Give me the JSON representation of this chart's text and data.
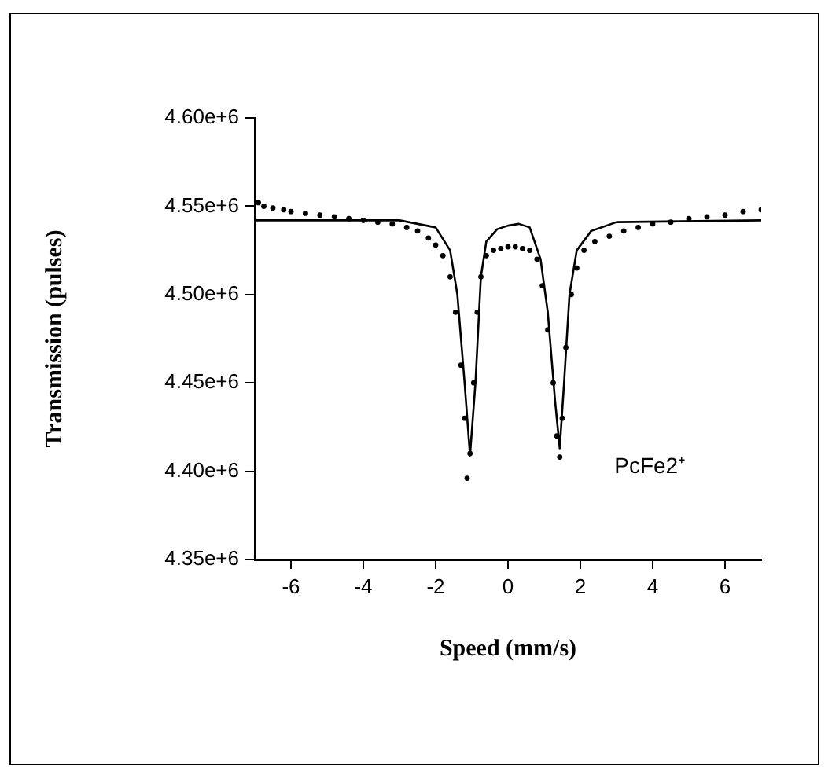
{
  "chart_data": {
    "type": "scatter",
    "xlabel": "Speed (mm/s)",
    "ylabel": "Transmission (pulses)",
    "xlim": [
      -7,
      7
    ],
    "xticks": [
      -6,
      -4,
      -2,
      0,
      2,
      4,
      6
    ],
    "ylim": [
      4350000,
      4600000
    ],
    "yticks": [
      {
        "value": 4350000,
        "label": "4.35e+6"
      },
      {
        "value": 4400000,
        "label": "4.40e+6"
      },
      {
        "value": 4450000,
        "label": "4.45e+6"
      },
      {
        "value": 4500000,
        "label": "4.50e+6"
      },
      {
        "value": 4550000,
        "label": "4.55e+6"
      },
      {
        "value": 4600000,
        "label": "4.60e+6"
      }
    ],
    "grid": false,
    "legend": false,
    "annotations": [
      "PcFe2⁺"
    ],
    "series": [
      {
        "type": "scatter",
        "marker": "circle",
        "color": "#000000",
        "x": [
          -6.9,
          -6.75,
          -6.5,
          -6.2,
          -6,
          -5.6,
          -5.2,
          -4.8,
          -4.4,
          -4,
          -3.6,
          -3.2,
          -2.8,
          -2.5,
          -2.2,
          -2,
          -1.8,
          -1.6,
          -1.45,
          -1.3,
          -1.2,
          -1.13,
          -1.05,
          -0.95,
          -0.85,
          -0.75,
          -0.6,
          -0.4,
          -0.2,
          0,
          0.2,
          0.4,
          0.6,
          0.8,
          0.95,
          1.1,
          1.25,
          1.35,
          1.43,
          1.5,
          1.6,
          1.75,
          1.9,
          2.1,
          2.4,
          2.8,
          3.2,
          3.6,
          4,
          4.5,
          5,
          5.5,
          6,
          6.5,
          7
        ],
        "values": [
          4552000,
          4550000,
          4549000,
          4548000,
          4547000,
          4546000,
          4545000,
          4544000,
          4543000,
          4542000,
          4541000,
          4540000,
          4538000,
          4536000,
          4532000,
          4528000,
          4522000,
          4510000,
          4490000,
          4460000,
          4430000,
          4396000,
          4410000,
          4450000,
          4490000,
          4510000,
          4522000,
          4525000,
          4526000,
          4527000,
          4527000,
          4526000,
          4525000,
          4520000,
          4505000,
          4480000,
          4450000,
          4420000,
          4408000,
          4430000,
          4470000,
          4500000,
          4515000,
          4525000,
          4530000,
          4533000,
          4536000,
          4538000,
          4540000,
          4541000,
          4543000,
          4544000,
          4545000,
          4547000,
          4548000
        ]
      },
      {
        "type": "line",
        "marker": "none",
        "line_style": "solid",
        "color": "#000000",
        "x": [
          -7,
          -3,
          -2,
          -1.6,
          -1.4,
          -1.2,
          -1.05,
          -0.9,
          -0.75,
          -0.6,
          -0.3,
          0,
          0.3,
          0.6,
          0.9,
          1.1,
          1.3,
          1.43,
          1.55,
          1.7,
          1.9,
          2.3,
          3,
          7
        ],
        "values": [
          4542000,
          4542000,
          4538000,
          4525000,
          4500000,
          4450000,
          4409000,
          4450000,
          4510000,
          4530000,
          4537000,
          4539000,
          4540000,
          4538000,
          4520000,
          4490000,
          4440000,
          4413000,
          4450000,
          4500000,
          4525000,
          4536000,
          4541000,
          4542000
        ]
      }
    ]
  }
}
